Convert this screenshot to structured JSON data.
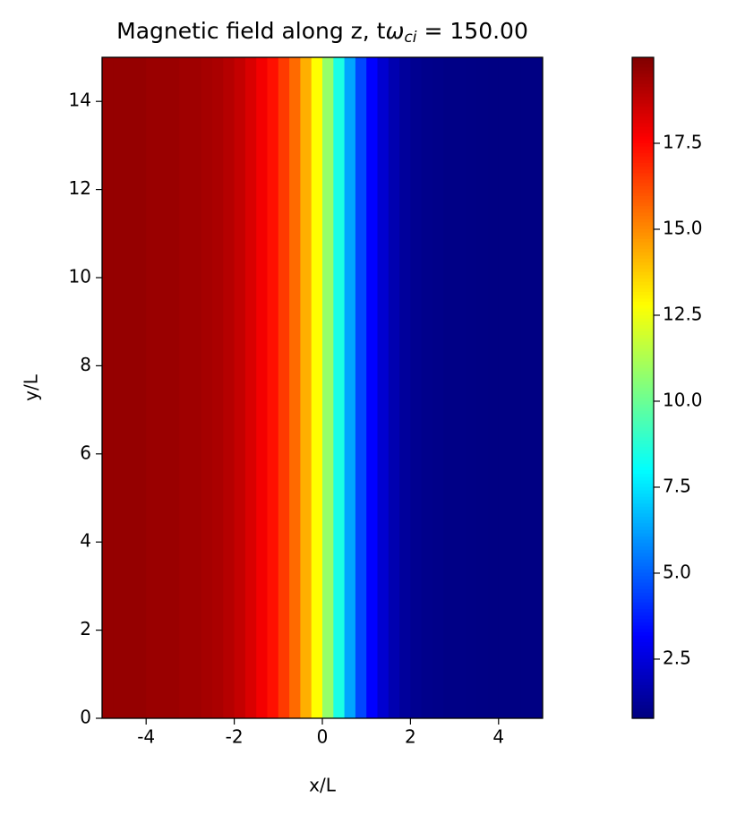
{
  "chart_data": {
    "type": "heatmap",
    "title": {
      "text": "Magnetic field along z, t",
      "symbol": "ω",
      "subscript": "ci",
      "rest": "= 150.00"
    },
    "x_label": "x/L",
    "y_label": "y/L",
    "x": [
      -4.875,
      -4.625,
      -4.375,
      -4.125,
      -3.875,
      -3.625,
      -3.375,
      -3.125,
      -2.875,
      -2.625,
      -2.375,
      -2.125,
      -1.875,
      -1.625,
      -1.375,
      -1.125,
      -0.875,
      -0.625,
      -0.375,
      -0.125,
      0.125,
      0.375,
      0.625,
      0.875,
      1.125,
      1.375,
      1.625,
      1.875,
      2.125,
      2.375,
      2.625,
      2.875,
      3.125,
      3.375,
      3.625,
      3.875,
      4.125,
      4.375,
      4.625,
      4.875
    ],
    "values": [
      19.6,
      19.6,
      19.6,
      19.6,
      19.5,
      19.5,
      19.5,
      19.4,
      19.4,
      19.3,
      19.2,
      19.0,
      18.7,
      18.3,
      17.8,
      17.3,
      16.5,
      15.6,
      14.3,
      12.8,
      10.8,
      8.5,
      6.3,
      4.5,
      3.2,
      2.3,
      1.7,
      1.3,
      1.1,
      1.0,
      0.95,
      0.9,
      0.9,
      0.88,
      0.86,
      0.85,
      0.85,
      0.84,
      0.84,
      0.84
    ],
    "xlim": [
      -5,
      5
    ],
    "ylim": [
      0,
      15
    ],
    "xticks": [
      -4,
      -2,
      0,
      2,
      4
    ],
    "yticks": [
      0,
      2,
      4,
      6,
      8,
      10,
      12,
      14
    ],
    "colormap": "jet",
    "clim": [
      0.78,
      20.0
    ],
    "cticks": [
      2.5,
      {
        "value": 5,
        "label": "5.0"
      },
      7.5,
      {
        "value": 10,
        "label": "10.0"
      },
      12.5,
      {
        "value": 15,
        "label": "15.0"
      },
      17.5
    ]
  }
}
